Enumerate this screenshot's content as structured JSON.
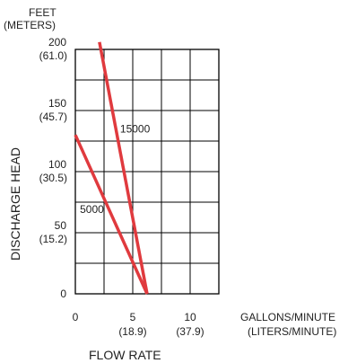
{
  "chart_data": {
    "type": "line",
    "ylabel": "DISCHARGE HEAD",
    "xlabel": "FLOW RATE",
    "y_unit_top": "FEET",
    "y_unit_top_metric": "(METERS)",
    "x_unit_primary": "GALLONS/MINUTE",
    "x_unit_metric": "(LITERS/MINUTE)",
    "xlim": [
      0,
      12.5
    ],
    "ylim": [
      0,
      200
    ],
    "grid": true,
    "y_ticks": [
      {
        "value": 0,
        "label": "0",
        "metric": ""
      },
      {
        "value": 50,
        "label": "50",
        "metric": "(15.2)"
      },
      {
        "value": 100,
        "label": "100",
        "metric": "(30.5)"
      },
      {
        "value": 150,
        "label": "150",
        "metric": "(45.7)"
      },
      {
        "value": 200,
        "label": "200",
        "metric": "(61.0)"
      }
    ],
    "x_ticks": [
      {
        "value": 0,
        "label": "0",
        "metric": ""
      },
      {
        "value": 5,
        "label": "5",
        "metric": "(18.9)"
      },
      {
        "value": 10,
        "label": "10",
        "metric": "(37.9)"
      }
    ],
    "series": [
      {
        "name": "15000",
        "x": [
          2.1,
          6.25
        ],
        "y": [
          206,
          0
        ]
      },
      {
        "name": "5000",
        "x": [
          0,
          6.25
        ],
        "y": [
          130,
          0
        ]
      }
    ],
    "series_label_points": [
      {
        "x": 3.9,
        "y": 132
      },
      {
        "x": 0.4,
        "y": 66
      }
    ],
    "colors": {
      "series": "#e03a3e",
      "grid": "#000000",
      "text": "#222222"
    }
  }
}
